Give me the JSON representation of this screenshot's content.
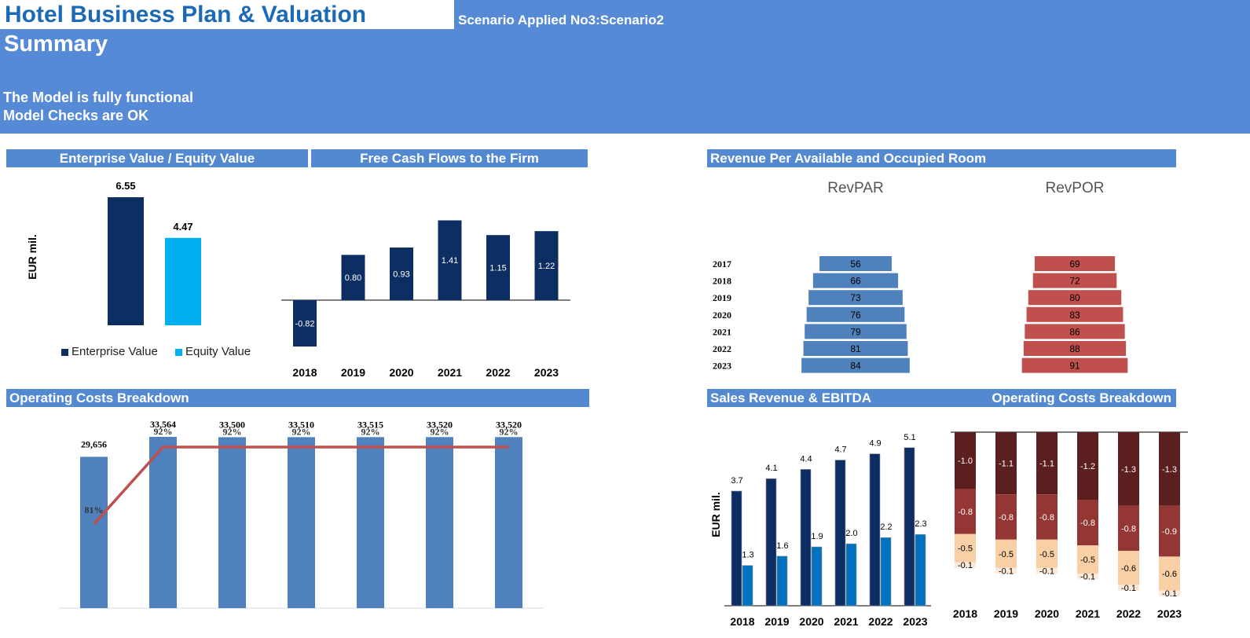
{
  "header": {
    "title": "Hotel Business Plan & Valuation",
    "scenario": "Scenario Applied No3:Scenario2",
    "subtitle": "Summary",
    "status_line1": "The Model is fully functional",
    "status_line2": "Model Checks are OK"
  },
  "sections": {
    "ev": "Enterprise Value / Equity Value",
    "fcf": "Free Cash Flows to the Firm",
    "rev_room": "Revenue Per Available and Occupied Room",
    "opcost": "Operating Costs Breakdown",
    "sales": "Sales Revenue & EBITDA",
    "opcost2": "Operating Costs Breakdown"
  },
  "colors": {
    "banner": "#568ad6",
    "title_text": "#1a6ab7",
    "navy": "#0d2e63",
    "cyan": "#00b0f0",
    "steel": "#4f81bd",
    "red": "#c0504d",
    "dark_red": "#5c1f1f",
    "mid_red": "#943634",
    "peach": "#f9cfa5",
    "light_peach": "#fde9d9"
  },
  "chart_data": [
    {
      "id": "ev",
      "type": "bar",
      "ylabel": "EUR mil.",
      "categories": [
        "Enterprise Value",
        "Equity Value"
      ],
      "values": [
        6.55,
        4.47
      ],
      "labels": [
        "6.55",
        "4.47"
      ],
      "legend": [
        "Enterprise Value",
        "Equity Value"
      ],
      "colors": [
        "#0d2e63",
        "#00b0f0"
      ]
    },
    {
      "id": "fcf",
      "type": "bar",
      "categories": [
        "2018",
        "2019",
        "2020",
        "2021",
        "2022",
        "2023"
      ],
      "values": [
        -0.82,
        0.8,
        0.93,
        1.41,
        1.15,
        1.22
      ],
      "labels": [
        "-0.82",
        "0.80",
        "0.93",
        "1.41",
        "1.15",
        "1.22"
      ]
    },
    {
      "id": "revroom",
      "type": "bar",
      "orientation": "horizontal",
      "categories": [
        "2017",
        "2018",
        "2019",
        "2020",
        "2021",
        "2022",
        "2023"
      ],
      "series": [
        {
          "name": "RevPAR",
          "values": [
            56,
            66,
            73,
            76,
            79,
            81,
            84
          ],
          "labels": [
            "56",
            "66",
            "73",
            "76",
            "79",
            "81",
            "84"
          ]
        },
        {
          "name": "RevPOR",
          "values": [
            69,
            72,
            80,
            83,
            86,
            88,
            91
          ],
          "labels": [
            "69",
            "72",
            "80",
            "83",
            "86",
            "88",
            "91"
          ]
        }
      ]
    },
    {
      "id": "opcost",
      "type": "bar",
      "categories": [
        "",
        "",
        "",
        "",
        "",
        "",
        ""
      ],
      "series": [
        {
          "values": [
            29656,
            33564,
            33500,
            33510,
            33515,
            33520,
            33520
          ],
          "labels": [
            "29,656",
            "33,564",
            "33,500",
            "33,510",
            "33,515",
            "33,520",
            "33,520"
          ]
        },
        {
          "type": "line",
          "values": [
            81,
            92,
            92,
            92,
            92,
            92,
            92
          ],
          "labels": [
            "81%",
            "92%",
            "92%",
            "92%",
            "92%",
            "92%",
            "92%"
          ]
        }
      ]
    },
    {
      "id": "sales",
      "type": "bar",
      "ylabel": "EUR mil.",
      "categories": [
        "2018",
        "2019",
        "2020",
        "2021",
        "2022",
        "2023"
      ],
      "series": [
        {
          "values": [
            3.7,
            4.1,
            4.4,
            4.7,
            4.9,
            5.1
          ],
          "labels": [
            "3.7",
            "4.1",
            "4.4",
            "4.7",
            "4.9",
            "5.1"
          ]
        },
        {
          "values": [
            1.3,
            1.6,
            1.9,
            2.0,
            2.2,
            2.3
          ],
          "labels": [
            "1.3",
            "1.6",
            "1.9",
            "2.0",
            "2.2",
            "2.3"
          ]
        }
      ]
    },
    {
      "id": "opcost2",
      "type": "bar",
      "stacked": true,
      "categories": [
        "2018",
        "2019",
        "2020",
        "2021",
        "2022",
        "2023"
      ],
      "series": [
        {
          "values": [
            -1.0,
            -1.1,
            -1.1,
            -1.2,
            -1.3,
            -1.3
          ],
          "labels": [
            "-1.0",
            "-1.1",
            "-1.1",
            "-1.2",
            "-1.3",
            "-1.3"
          ]
        },
        {
          "values": [
            -0.8,
            -0.8,
            -0.8,
            -0.8,
            -0.8,
            -0.9
          ],
          "labels": [
            "-0.8",
            "-0.8",
            "-0.8",
            "-0.8",
            "-0.8",
            "-0.9"
          ]
        },
        {
          "values": [
            -0.5,
            -0.5,
            -0.5,
            -0.5,
            -0.6,
            -0.6
          ],
          "labels": [
            "-0.5",
            "-0.5",
            "-0.5",
            "-0.5",
            "-0.6",
            "-0.6"
          ]
        },
        {
          "values": [
            -0.1,
            -0.1,
            -0.1,
            -0.1,
            -0.1,
            -0.1
          ],
          "labels": [
            "-0.1",
            "-0.1",
            "-0.1",
            "-0.1",
            "-0.1",
            "-0.1"
          ]
        }
      ]
    }
  ]
}
